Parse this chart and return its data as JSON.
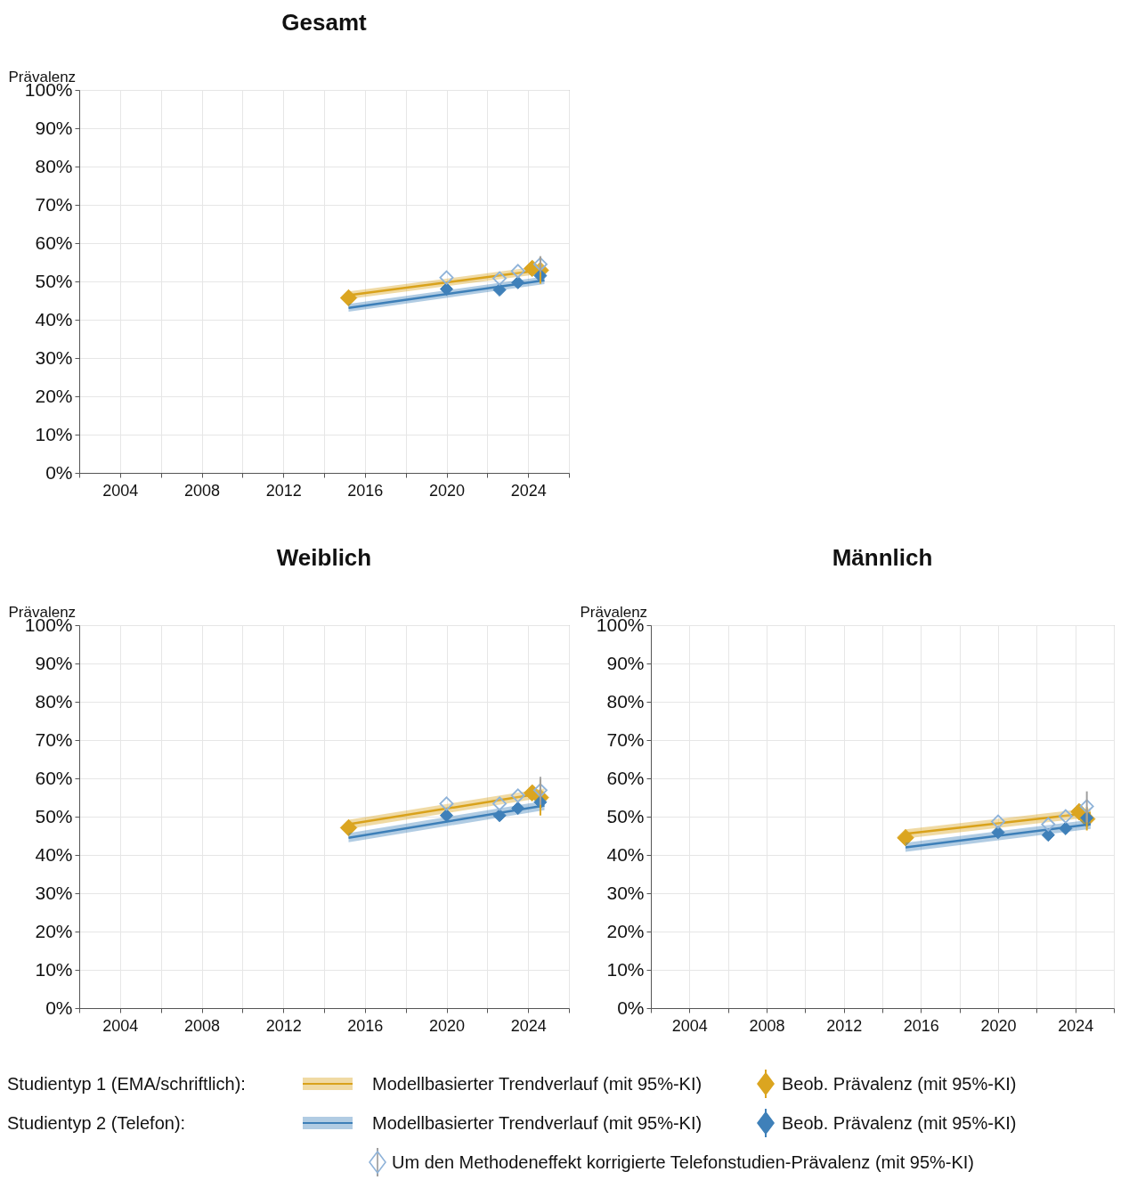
{
  "chart_data": [
    {
      "type": "line",
      "title": "Gesamt",
      "ylabel": "Prävalenz",
      "xlim": [
        2002,
        2026
      ],
      "ylim": [
        0,
        100
      ],
      "xticks": [
        {
          "value": 2002,
          "label": null
        },
        2004,
        {
          "value": 2006,
          "label": null
        },
        2008,
        {
          "value": 2010,
          "label": null
        },
        2012,
        {
          "value": 2014,
          "label": null
        },
        2016,
        {
          "value": 2018,
          "label": null
        },
        2020,
        {
          "value": 2022,
          "label": null
        },
        2024,
        {
          "value": 2026,
          "label": null
        }
      ],
      "yticks": [
        {
          "value": 0,
          "label": "0%"
        },
        {
          "value": 10,
          "label": "10%"
        },
        {
          "value": 20,
          "label": "20%"
        },
        {
          "value": 30,
          "label": "30%"
        },
        {
          "value": 40,
          "label": "40%"
        },
        {
          "value": 50,
          "label": "50%"
        },
        {
          "value": 60,
          "label": "60%"
        },
        {
          "value": 70,
          "label": "70%"
        },
        {
          "value": 80,
          "label": "80%"
        },
        {
          "value": 90,
          "label": "90%"
        },
        {
          "value": 100,
          "label": "100%"
        }
      ],
      "grid": true,
      "series": [
        {
          "type": "line",
          "color": "#d9a21b",
          "x": [
            2015.2,
            2024.8
          ],
          "values": [
            46.4,
            53.1
          ],
          "lower": [
            45.4,
            52.1
          ],
          "upper": [
            47.4,
            54.1
          ]
        },
        {
          "type": "scatter",
          "marker": "diamond",
          "color": "#dba520",
          "x": [
            2015.2,
            2024.2,
            2024.6
          ],
          "values": [
            45.7,
            53.4,
            52.9
          ],
          "errors": [
            null,
            null,
            [
              49.4,
              56.4
            ]
          ]
        },
        {
          "type": "line",
          "color": "#3d7fb8",
          "x": [
            2015.2,
            2024.8
          ],
          "values": [
            43.1,
            50.3
          ],
          "lower": [
            42.1,
            49.3
          ],
          "upper": [
            44.1,
            51.3
          ]
        },
        {
          "type": "scatter",
          "marker": "diamond",
          "color": "#3f80b9",
          "x": [
            2020.0,
            2022.6,
            2023.5,
            2024.6
          ],
          "values": [
            48.0,
            47.8,
            49.7,
            51.5
          ]
        },
        {
          "type": "scatter",
          "marker": "diamond",
          "color": "#8fb3d9",
          "x": [
            2020.0,
            2022.6,
            2023.5,
            2024.6
          ],
          "values": [
            51.0,
            50.8,
            52.7,
            54.5
          ],
          "errors": [
            null,
            null,
            null,
            [
              52.4,
              56.6
            ]
          ]
        }
      ]
    },
    {
      "type": "line",
      "title": "Weiblich",
      "ylabel": "Prävalenz",
      "xlim": [
        2002,
        2026
      ],
      "ylim": [
        0,
        100
      ],
      "xticks": [
        {
          "value": 2002,
          "label": null
        },
        2004,
        {
          "value": 2006,
          "label": null
        },
        2008,
        {
          "value": 2010,
          "label": null
        },
        2012,
        {
          "value": 2014,
          "label": null
        },
        2016,
        {
          "value": 2018,
          "label": null
        },
        2020,
        {
          "value": 2022,
          "label": null
        },
        2024,
        {
          "value": 2026,
          "label": null
        }
      ],
      "yticks": [
        {
          "value": 0,
          "label": "0%"
        },
        {
          "value": 10,
          "label": "10%"
        },
        {
          "value": 20,
          "label": "20%"
        },
        {
          "value": 30,
          "label": "30%"
        },
        {
          "value": 40,
          "label": "40%"
        },
        {
          "value": 50,
          "label": "50%"
        },
        {
          "value": 60,
          "label": "60%"
        },
        {
          "value": 70,
          "label": "70%"
        },
        {
          "value": 80,
          "label": "80%"
        },
        {
          "value": 90,
          "label": "90%"
        },
        {
          "value": 100,
          "label": "100%"
        }
      ],
      "grid": true,
      "series": [
        {
          "type": "line",
          "color": "#d9a21b",
          "x": [
            2015.2,
            2024.8
          ],
          "values": [
            48.0,
            56.2
          ],
          "lower": [
            46.8,
            55.0
          ],
          "upper": [
            49.2,
            57.4
          ]
        },
        {
          "type": "scatter",
          "marker": "diamond",
          "color": "#dba520",
          "x": [
            2015.2,
            2024.2,
            2024.6
          ],
          "values": [
            47.1,
            56.2,
            55.0
          ],
          "errors": [
            null,
            null,
            [
              50.3,
              59.7
            ]
          ]
        },
        {
          "type": "line",
          "color": "#3d7fb8",
          "x": [
            2015.2,
            2024.8
          ],
          "values": [
            44.5,
            52.9
          ],
          "lower": [
            43.3,
            51.7
          ],
          "upper": [
            45.7,
            54.1
          ]
        },
        {
          "type": "scatter",
          "marker": "diamond",
          "color": "#3f80b9",
          "x": [
            2020.0,
            2022.6,
            2023.5,
            2024.6
          ],
          "values": [
            50.3,
            50.3,
            52.2,
            53.8
          ]
        },
        {
          "type": "scatter",
          "marker": "diamond",
          "color": "#8fb3d9",
          "x": [
            2020.0,
            2022.6,
            2023.5,
            2024.6
          ],
          "values": [
            53.4,
            53.4,
            55.5,
            56.9
          ],
          "errors": [
            null,
            null,
            null,
            [
              53.1,
              60.4
            ]
          ]
        }
      ]
    },
    {
      "type": "line",
      "title": "Männlich",
      "ylabel": "Prävalenz",
      "xlim": [
        2002,
        2026
      ],
      "ylim": [
        0,
        100
      ],
      "xticks": [
        {
          "value": 2002,
          "label": null
        },
        2004,
        {
          "value": 2006,
          "label": null
        },
        2008,
        {
          "value": 2010,
          "label": null
        },
        2012,
        {
          "value": 2014,
          "label": null
        },
        2016,
        {
          "value": 2018,
          "label": null
        },
        2020,
        {
          "value": 2022,
          "label": null
        },
        2024,
        {
          "value": 2026,
          "label": null
        }
      ],
      "yticks": [
        {
          "value": 0,
          "label": "0%"
        },
        {
          "value": 10,
          "label": "10%"
        },
        {
          "value": 20,
          "label": "20%"
        },
        {
          "value": 30,
          "label": "30%"
        },
        {
          "value": 40,
          "label": "40%"
        },
        {
          "value": 50,
          "label": "50%"
        },
        {
          "value": 60,
          "label": "60%"
        },
        {
          "value": 70,
          "label": "70%"
        },
        {
          "value": 80,
          "label": "80%"
        },
        {
          "value": 90,
          "label": "90%"
        },
        {
          "value": 100,
          "label": "100%"
        }
      ],
      "grid": true,
      "legend": "bottom",
      "annotations": [
        "Studientyp 1 (EMA/schriftlich):",
        "Studientyp 2 (Telefon):"
      ],
      "series": [
        {
          "type": "line",
          "name": "Modellbasierter Trendverlauf (mit 95%-KI)",
          "color": "#d9a21b",
          "x": [
            2015.2,
            2024.8
          ],
          "values": [
            45.5,
            51.0
          ],
          "lower": [
            44.3,
            49.8
          ],
          "upper": [
            46.7,
            52.2
          ]
        },
        {
          "type": "scatter",
          "name": "Beob. Prävalenz (mit 95%-KI)",
          "marker": "diamond",
          "color": "#dba520",
          "x": [
            2015.2,
            2024.2,
            2024.6
          ],
          "values": [
            44.5,
            51.3,
            49.4
          ],
          "errors": [
            null,
            null,
            [
              46.4,
              52.5
            ]
          ]
        },
        {
          "type": "line",
          "name": "Modellbasierter Trendverlauf (mit 95%-KI)",
          "color": "#3d7fb8",
          "x": [
            2015.2,
            2024.8
          ],
          "values": [
            42.0,
            48.0
          ],
          "lower": [
            40.8,
            46.8
          ],
          "upper": [
            43.2,
            49.2
          ]
        },
        {
          "type": "scatter",
          "name": "Beob. Prävalenz (mit 95%-KI)",
          "marker": "diamond",
          "color": "#3f80b9",
          "x": [
            2020.0,
            2022.6,
            2023.5,
            2024.6
          ],
          "values": [
            45.9,
            45.2,
            46.9,
            49.7
          ]
        },
        {
          "type": "scatter",
          "name": "Um den Methodeneffekt korrigierte Telefonstudien-Prävalenz (mit 95%-KI)",
          "marker": "diamond",
          "color": "#8fb3d9",
          "x": [
            2020.0,
            2022.6,
            2023.5,
            2024.6
          ],
          "values": [
            48.7,
            48.0,
            50.1,
            52.7
          ],
          "errors": [
            null,
            null,
            null,
            [
              48.5,
              56.6
            ]
          ]
        }
      ]
    }
  ]
}
